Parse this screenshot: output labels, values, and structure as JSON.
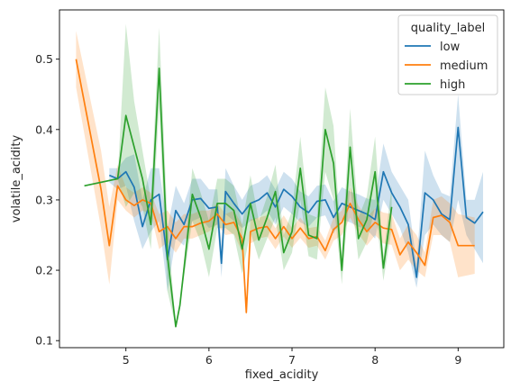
{
  "chart_data": {
    "type": "line",
    "xlabel": "fixed_acidity",
    "ylabel": "volatile_acidity",
    "xlim": [
      4.2,
      9.55
    ],
    "ylim": [
      0.09,
      0.57
    ],
    "x_ticks": [
      5,
      6,
      7,
      8,
      9
    ],
    "y_ticks": [
      0.1,
      0.2,
      0.3,
      0.4,
      0.5
    ],
    "legend": {
      "title": "quality_label",
      "placement": "top-right"
    },
    "series": [
      {
        "name": "low",
        "color": "#1f77b4",
        "points": [
          [
            4.8,
            0.335
          ],
          [
            4.9,
            0.33
          ],
          [
            5.0,
            0.34
          ],
          [
            5.1,
            0.318
          ],
          [
            5.2,
            0.262
          ],
          [
            5.3,
            0.3
          ],
          [
            5.4,
            0.308
          ],
          [
            5.5,
            0.215
          ],
          [
            5.6,
            0.285
          ],
          [
            5.7,
            0.265
          ],
          [
            5.8,
            0.3
          ],
          [
            5.9,
            0.302
          ],
          [
            6.0,
            0.288
          ],
          [
            6.1,
            0.29
          ],
          [
            6.15,
            0.21
          ],
          [
            6.2,
            0.312
          ],
          [
            6.3,
            0.295
          ],
          [
            6.4,
            0.28
          ],
          [
            6.5,
            0.295
          ],
          [
            6.6,
            0.3
          ],
          [
            6.7,
            0.31
          ],
          [
            6.8,
            0.29
          ],
          [
            6.9,
            0.315
          ],
          [
            7.0,
            0.305
          ],
          [
            7.1,
            0.29
          ],
          [
            7.2,
            0.282
          ],
          [
            7.3,
            0.298
          ],
          [
            7.4,
            0.3
          ],
          [
            7.5,
            0.275
          ],
          [
            7.6,
            0.295
          ],
          [
            7.7,
            0.29
          ],
          [
            7.8,
            0.285
          ],
          [
            7.9,
            0.28
          ],
          [
            8.0,
            0.272
          ],
          [
            8.1,
            0.34
          ],
          [
            8.2,
            0.31
          ],
          [
            8.3,
            0.29
          ],
          [
            8.4,
            0.265
          ],
          [
            8.5,
            0.19
          ],
          [
            8.6,
            0.31
          ],
          [
            8.7,
            0.3
          ],
          [
            8.8,
            0.28
          ],
          [
            8.9,
            0.272
          ],
          [
            9.0,
            0.403
          ],
          [
            9.1,
            0.275
          ],
          [
            9.2,
            0.267
          ],
          [
            9.3,
            0.283
          ]
        ],
        "ci_low": [
          0.325,
          0.315,
          0.32,
          0.27,
          0.23,
          0.255,
          0.27,
          0.17,
          0.245,
          0.235,
          0.27,
          0.275,
          0.26,
          0.265,
          0.19,
          0.28,
          0.27,
          0.26,
          0.27,
          0.275,
          0.285,
          0.265,
          0.29,
          0.28,
          0.268,
          0.262,
          0.275,
          0.278,
          0.252,
          0.272,
          0.268,
          0.262,
          0.258,
          0.245,
          0.3,
          0.28,
          0.26,
          0.225,
          0.175,
          0.25,
          0.265,
          0.25,
          0.24,
          0.3,
          0.25,
          0.23,
          0.21
        ],
        "ci_high": [
          0.345,
          0.345,
          0.36,
          0.365,
          0.3,
          0.345,
          0.345,
          0.26,
          0.32,
          0.295,
          0.33,
          0.33,
          0.315,
          0.315,
          0.235,
          0.345,
          0.32,
          0.3,
          0.32,
          0.325,
          0.335,
          0.315,
          0.34,
          0.33,
          0.312,
          0.305,
          0.32,
          0.322,
          0.298,
          0.318,
          0.312,
          0.308,
          0.302,
          0.3,
          0.38,
          0.34,
          0.32,
          0.3,
          0.21,
          0.37,
          0.335,
          0.31,
          0.305,
          0.45,
          0.3,
          0.3,
          0.34
        ]
      },
      {
        "name": "medium",
        "color": "#ff7f0e",
        "points": [
          [
            4.4,
            0.5
          ],
          [
            4.7,
            0.315
          ],
          [
            4.8,
            0.235
          ],
          [
            4.9,
            0.32
          ],
          [
            5.0,
            0.3
          ],
          [
            5.1,
            0.292
          ],
          [
            5.2,
            0.3
          ],
          [
            5.3,
            0.295
          ],
          [
            5.4,
            0.255
          ],
          [
            5.5,
            0.262
          ],
          [
            5.6,
            0.245
          ],
          [
            5.7,
            0.262
          ],
          [
            5.8,
            0.262
          ],
          [
            5.9,
            0.267
          ],
          [
            6.0,
            0.27
          ],
          [
            6.1,
            0.28
          ],
          [
            6.2,
            0.265
          ],
          [
            6.3,
            0.268
          ],
          [
            6.4,
            0.245
          ],
          [
            6.45,
            0.14
          ],
          [
            6.5,
            0.255
          ],
          [
            6.6,
            0.26
          ],
          [
            6.7,
            0.262
          ],
          [
            6.8,
            0.245
          ],
          [
            6.9,
            0.262
          ],
          [
            7.0,
            0.245
          ],
          [
            7.1,
            0.26
          ],
          [
            7.2,
            0.245
          ],
          [
            7.3,
            0.248
          ],
          [
            7.4,
            0.228
          ],
          [
            7.5,
            0.258
          ],
          [
            7.6,
            0.268
          ],
          [
            7.7,
            0.295
          ],
          [
            7.8,
            0.272
          ],
          [
            7.9,
            0.255
          ],
          [
            8.0,
            0.268
          ],
          [
            8.1,
            0.26
          ],
          [
            8.2,
            0.258
          ],
          [
            8.3,
            0.222
          ],
          [
            8.4,
            0.24
          ],
          [
            8.5,
            0.225
          ],
          [
            8.6,
            0.207
          ],
          [
            8.7,
            0.275
          ],
          [
            8.8,
            0.278
          ],
          [
            8.9,
            0.268
          ],
          [
            9.0,
            0.235
          ],
          [
            9.2,
            0.235
          ]
        ],
        "ci_low": [
          0.46,
          0.26,
          0.18,
          0.3,
          0.285,
          0.275,
          0.285,
          0.28,
          0.23,
          0.24,
          0.225,
          0.245,
          0.245,
          0.25,
          0.255,
          0.265,
          0.25,
          0.252,
          0.225,
          0.135,
          0.238,
          0.245,
          0.248,
          0.23,
          0.248,
          0.232,
          0.246,
          0.232,
          0.235,
          0.215,
          0.242,
          0.25,
          0.275,
          0.252,
          0.235,
          0.25,
          0.238,
          0.236,
          0.2,
          0.215,
          0.2,
          0.19,
          0.25,
          0.25,
          0.24,
          0.19,
          0.195
        ],
        "ci_high": [
          0.54,
          0.37,
          0.29,
          0.35,
          0.318,
          0.31,
          0.318,
          0.31,
          0.28,
          0.285,
          0.268,
          0.28,
          0.28,
          0.285,
          0.285,
          0.295,
          0.28,
          0.285,
          0.265,
          0.145,
          0.272,
          0.275,
          0.278,
          0.26,
          0.278,
          0.26,
          0.275,
          0.26,
          0.262,
          0.242,
          0.275,
          0.285,
          0.318,
          0.292,
          0.275,
          0.288,
          0.282,
          0.28,
          0.245,
          0.265,
          0.25,
          0.225,
          0.3,
          0.305,
          0.295,
          0.28,
          0.275
        ]
      },
      {
        "name": "high",
        "color": "#2ca02c",
        "points": [
          [
            4.5,
            0.32
          ],
          [
            4.9,
            0.33
          ],
          [
            5.0,
            0.42
          ],
          [
            5.1,
            0.375
          ],
          [
            5.2,
            0.33
          ],
          [
            5.3,
            0.265
          ],
          [
            5.4,
            0.487
          ],
          [
            5.5,
            0.22
          ],
          [
            5.6,
            0.12
          ],
          [
            5.65,
            0.15
          ],
          [
            5.8,
            0.308
          ],
          [
            5.9,
            0.275
          ],
          [
            6.0,
            0.23
          ],
          [
            6.1,
            0.295
          ],
          [
            6.2,
            0.295
          ],
          [
            6.3,
            0.285
          ],
          [
            6.4,
            0.23
          ],
          [
            6.5,
            0.295
          ],
          [
            6.6,
            0.243
          ],
          [
            6.7,
            0.275
          ],
          [
            6.8,
            0.312
          ],
          [
            6.9,
            0.225
          ],
          [
            7.0,
            0.255
          ],
          [
            7.1,
            0.345
          ],
          [
            7.2,
            0.25
          ],
          [
            7.3,
            0.245
          ],
          [
            7.4,
            0.4
          ],
          [
            7.5,
            0.352
          ],
          [
            7.6,
            0.2
          ],
          [
            7.7,
            0.375
          ],
          [
            7.8,
            0.245
          ],
          [
            7.9,
            0.272
          ],
          [
            8.0,
            0.34
          ],
          [
            8.1,
            0.203
          ],
          [
            8.2,
            0.29
          ]
        ],
        "ci_low": [
          0.32,
          0.33,
          0.29,
          0.31,
          0.29,
          0.23,
          0.43,
          0.17,
          0.12,
          0.15,
          0.27,
          0.24,
          0.19,
          0.26,
          0.26,
          0.25,
          0.195,
          0.255,
          0.215,
          0.245,
          0.275,
          0.2,
          0.225,
          0.3,
          0.22,
          0.215,
          0.34,
          0.3,
          0.18,
          0.32,
          0.215,
          0.24,
          0.29,
          0.185,
          0.26
        ],
        "ci_high": [
          0.32,
          0.33,
          0.55,
          0.44,
          0.37,
          0.3,
          0.545,
          0.27,
          0.12,
          0.15,
          0.345,
          0.31,
          0.27,
          0.33,
          0.33,
          0.32,
          0.265,
          0.335,
          0.27,
          0.305,
          0.35,
          0.25,
          0.285,
          0.39,
          0.28,
          0.275,
          0.46,
          0.405,
          0.22,
          0.43,
          0.275,
          0.305,
          0.39,
          0.22,
          0.32
        ]
      }
    ]
  }
}
